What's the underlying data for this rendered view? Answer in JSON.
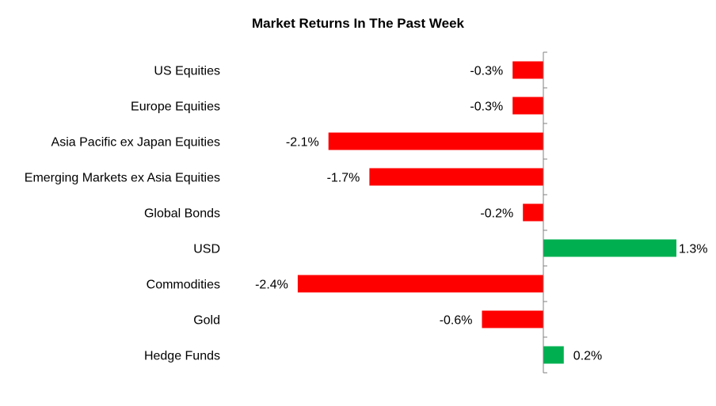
{
  "chart_data": {
    "type": "bar",
    "orientation": "horizontal",
    "title": "Market Returns In The Past Week",
    "categories": [
      "US Equities",
      "Europe Equities",
      "Asia Pacific ex Japan Equities",
      "Emerging Markets ex Asia Equities",
      "Global Bonds",
      "USD",
      "Commodities",
      "Gold",
      "Hedge Funds"
    ],
    "values": [
      -0.3,
      -0.3,
      -2.1,
      -1.7,
      -0.2,
      1.3,
      -2.4,
      -0.6,
      0.2
    ],
    "value_labels": [
      "-0.3%",
      "-0.3%",
      "-2.1%",
      "-1.7%",
      "-0.2%",
      "1.3%",
      "-2.4%",
      "-0.6%",
      "0.2%"
    ],
    "xlim": [
      -2.4,
      1.3
    ],
    "grid": false,
    "legend": "none",
    "colors": {
      "negative": "#ff0000",
      "positive": "#00b050",
      "axis": "#808080"
    }
  }
}
